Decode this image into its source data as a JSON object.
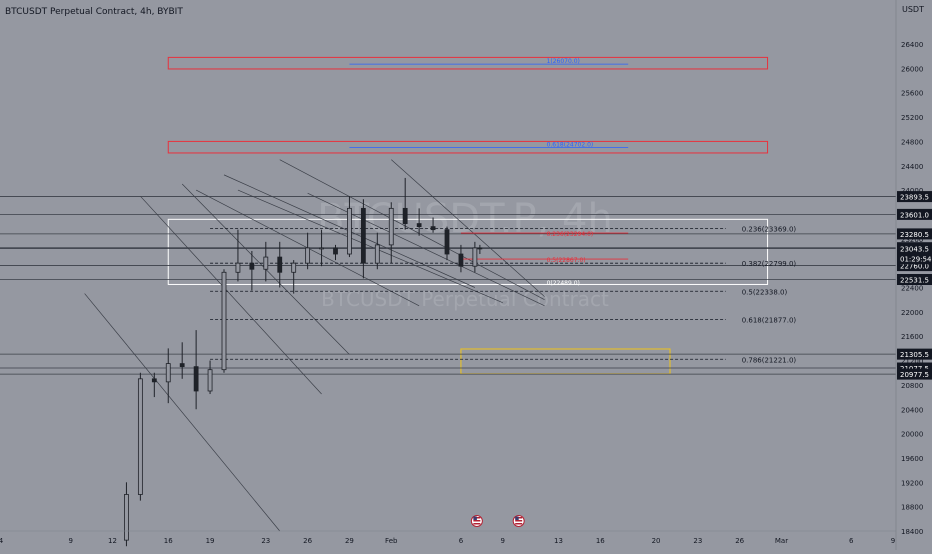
{
  "header": {
    "symbol_title": "BTCUSDT Perpetual Contract, 4h, BYBIT",
    "watermark_symbol": "BTCUSDT.P, 4h",
    "watermark_name": "BTCUSDT Perpetual Contract"
  },
  "countdown": "01:29:54",
  "colors": {
    "background": "#9598a1",
    "candles": "#1f2229",
    "price_line": "#2a2e39",
    "fib_red": "#e8313c",
    "fib_blue": "#2962ff",
    "zone_red": "#e8313c",
    "zone_white": "#ffffff",
    "zone_yellow": "#f0c419",
    "badge_bg": "#131722",
    "badge_text": "#ffffff"
  },
  "chart_data": {
    "type": "candlestick",
    "title": "BTCUSDT Perpetual Contract, 4h, BYBIT",
    "ylabel": "USDT",
    "ylim": [
      18050,
      27050
    ],
    "y_ticks": [
      18400,
      18800,
      19200,
      19600,
      20000,
      20400,
      20800,
      21200,
      21600,
      22000,
      22400,
      22800,
      23200,
      23600,
      24000,
      24400,
      24800,
      25200,
      25600,
      26000,
      26400
    ],
    "x_ticks": [
      {
        "label": "4",
        "date": "2023-01-04"
      },
      {
        "label": "9",
        "date": "2023-01-09"
      },
      {
        "label": "12",
        "date": "2023-01-12"
      },
      {
        "label": "16",
        "date": "2023-01-16"
      },
      {
        "label": "19",
        "date": "2023-01-19"
      },
      {
        "label": "23",
        "date": "2023-01-23"
      },
      {
        "label": "26",
        "date": "2023-01-26"
      },
      {
        "label": "29",
        "date": "2023-01-29"
      },
      {
        "label": "Feb",
        "date": "2023-02-01"
      },
      {
        "label": "6",
        "date": "2023-02-06"
      },
      {
        "label": "9",
        "date": "2023-02-09"
      },
      {
        "label": "13",
        "date": "2023-02-13"
      },
      {
        "label": "16",
        "date": "2023-02-16"
      },
      {
        "label": "20",
        "date": "2023-02-20"
      },
      {
        "label": "23",
        "date": "2023-02-23"
      },
      {
        "label": "26",
        "date": "2023-02-26"
      },
      {
        "label": "Mar",
        "date": "2023-03-01"
      },
      {
        "label": "6",
        "date": "2023-03-06"
      },
      {
        "label": "9",
        "date": "2023-03-09"
      }
    ],
    "horizontal_levels": [
      23893.5,
      23601.0,
      23280.5,
      23052.0,
      22760.0,
      22531.5,
      21305.5,
      21077.5,
      20977.5
    ],
    "price_badges": [
      {
        "label": "23893.5",
        "value": 23893.5
      },
      {
        "label": "23601.0",
        "value": 23601.0
      },
      {
        "label": "23280.5",
        "value": 23280.5
      },
      {
        "label": "23052.0",
        "value": 23052.0
      },
      {
        "label": "22760.0",
        "value": 22760.0
      },
      {
        "label": "22531.5",
        "value": 22531.5
      },
      {
        "label": "21305.5",
        "value": 21305.5
      },
      {
        "label": "21077.5",
        "value": 21077.5
      },
      {
        "label": "20977.5",
        "value": 20977.5
      }
    ],
    "current_price": {
      "label": "23043.5",
      "value": 23043.5
    },
    "fib_retracement_black": [
      {
        "label": "0.236(23369.0)",
        "value": 23369.0
      },
      {
        "label": "0.382(22799.0)",
        "value": 22799.0
      },
      {
        "label": "0.5(22338.0)",
        "value": 22338.0
      },
      {
        "label": "0.618(21877.0)",
        "value": 21877.0
      },
      {
        "label": "0.786(21221.0)",
        "value": 21221.0
      }
    ],
    "fib_red": [
      {
        "label": "0.236(23294.0)",
        "value": 23294.0
      },
      {
        "label": "0.5(22867.0)",
        "value": 22867.0
      },
      {
        "label": "0(22489.0)",
        "value": 22489.0
      }
    ],
    "fib_blue": [
      {
        "label": "1(26070.0)",
        "value": 26070.0
      },
      {
        "label": "0.618(24702.0)",
        "value": 24702.0
      }
    ],
    "zones": [
      {
        "kind": "red",
        "from_date": "2023-01-16",
        "to_date": "2023-02-28",
        "low": 25990,
        "high": 26180
      },
      {
        "kind": "red",
        "from_date": "2023-01-16",
        "to_date": "2023-02-28",
        "low": 24610,
        "high": 24800
      },
      {
        "kind": "white",
        "from_date": "2023-01-16",
        "to_date": "2023-02-28",
        "low": 22450,
        "high": 23520
      },
      {
        "kind": "yellow",
        "from_date": "2023-02-06",
        "to_date": "2023-02-21",
        "low": 20980,
        "high": 21390
      }
    ],
    "candles_4h": [
      {
        "date": "2023-01-13",
        "open": 18250,
        "high": 19200,
        "low": 18150,
        "close": 19000
      },
      {
        "date": "2023-01-14",
        "open": 19000,
        "high": 21000,
        "low": 18900,
        "close": 20900
      },
      {
        "date": "2023-01-15",
        "open": 20900,
        "high": 21000,
        "low": 20600,
        "close": 20850
      },
      {
        "date": "2023-01-16",
        "open": 20850,
        "high": 21400,
        "low": 20500,
        "close": 21150
      },
      {
        "date": "2023-01-17",
        "open": 21150,
        "high": 21500,
        "low": 20900,
        "close": 21100
      },
      {
        "date": "2023-01-18",
        "open": 21100,
        "high": 21700,
        "low": 20400,
        "close": 20700
      },
      {
        "date": "2023-01-19",
        "open": 20700,
        "high": 21200,
        "low": 20650,
        "close": 21050
      },
      {
        "date": "2023-01-20",
        "open": 21050,
        "high": 22700,
        "low": 21000,
        "close": 22650
      },
      {
        "date": "2023-01-21",
        "open": 22650,
        "high": 23350,
        "low": 22500,
        "close": 22800
      },
      {
        "date": "2023-01-22",
        "open": 22800,
        "high": 23000,
        "low": 22350,
        "close": 22700
      },
      {
        "date": "2023-01-23",
        "open": 22700,
        "high": 23150,
        "low": 22500,
        "close": 22900
      },
      {
        "date": "2023-01-24",
        "open": 22900,
        "high": 23150,
        "low": 22400,
        "close": 22650
      },
      {
        "date": "2023-01-25",
        "open": 22650,
        "high": 22850,
        "low": 22300,
        "close": 22800
      },
      {
        "date": "2023-01-26",
        "open": 22800,
        "high": 23300,
        "low": 22700,
        "close": 23050
      },
      {
        "date": "2023-01-27",
        "open": 23050,
        "high": 23350,
        "low": 22750,
        "close": 23050
      },
      {
        "date": "2023-01-28",
        "open": 23050,
        "high": 23100,
        "low": 22850,
        "close": 22950
      },
      {
        "date": "2023-01-29",
        "open": 22950,
        "high": 23900,
        "low": 22900,
        "close": 23700
      },
      {
        "date": "2023-01-30",
        "open": 23700,
        "high": 23850,
        "low": 22550,
        "close": 22800
      },
      {
        "date": "2023-01-31",
        "open": 22800,
        "high": 23300,
        "low": 22700,
        "close": 23100
      },
      {
        "date": "2023-02-01",
        "open": 23100,
        "high": 23800,
        "low": 22800,
        "close": 23700
      },
      {
        "date": "2023-02-02",
        "open": 23700,
        "high": 24200,
        "low": 23350,
        "close": 23450
      },
      {
        "date": "2023-02-03",
        "open": 23450,
        "high": 23700,
        "low": 23250,
        "close": 23400
      },
      {
        "date": "2023-02-04",
        "open": 23400,
        "high": 23550,
        "low": 23300,
        "close": 23350
      },
      {
        "date": "2023-02-05",
        "open": 23350,
        "high": 23400,
        "low": 22850,
        "close": 22950
      },
      {
        "date": "2023-02-06",
        "open": 22950,
        "high": 23100,
        "low": 22650,
        "close": 22750
      },
      {
        "date": "2023-02-07",
        "open": 22750,
        "high": 23150,
        "low": 22650,
        "close": 23050
      },
      {
        "date": "2023-02-07",
        "open": 23050,
        "high": 23100,
        "low": 22950,
        "close": 23043.5
      }
    ],
    "trend_channels": [
      {
        "from": {
          "date": "2023-01-10",
          "price": 22300
        },
        "to": {
          "date": "2023-01-24",
          "price": 18400
        }
      },
      {
        "from": {
          "date": "2023-01-14",
          "price": 23900
        },
        "to": {
          "date": "2023-01-27",
          "price": 20650
        }
      },
      {
        "from": {
          "date": "2023-01-17",
          "price": 24100
        },
        "to": {
          "date": "2023-01-29",
          "price": 21300
        }
      },
      {
        "from": {
          "date": "2023-01-18",
          "price": 24000
        },
        "to": {
          "date": "2023-02-03",
          "price": 22100
        }
      },
      {
        "from": {
          "date": "2023-01-20",
          "price": 24250
        },
        "to": {
          "date": "2023-02-07",
          "price": 22400
        }
      },
      {
        "from": {
          "date": "2023-01-21",
          "price": 24000
        },
        "to": {
          "date": "2023-02-09",
          "price": 22150
        }
      },
      {
        "from": {
          "date": "2023-01-24",
          "price": 24500
        },
        "to": {
          "date": "2023-02-12",
          "price": 22200
        }
      },
      {
        "from": {
          "date": "2023-01-26",
          "price": 23950
        },
        "to": {
          "date": "2023-02-12",
          "price": 22100
        }
      },
      {
        "from": {
          "date": "2023-02-01",
          "price": 24500
        },
        "to": {
          "date": "2023-02-12",
          "price": 22250
        }
      }
    ],
    "grid": false
  }
}
